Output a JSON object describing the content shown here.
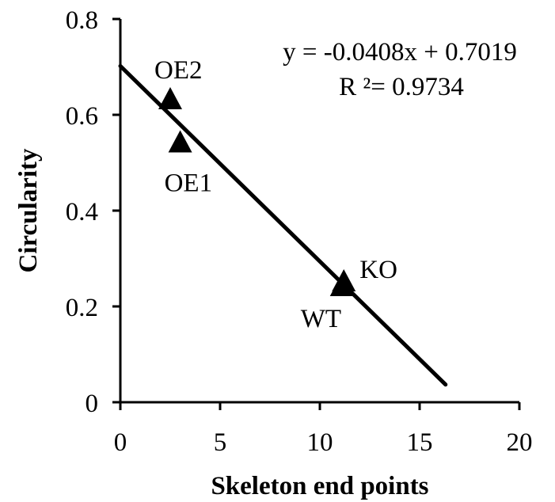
{
  "chart_data": {
    "type": "scatter",
    "xlabel": "Skeleton end points",
    "ylabel": "Circularity",
    "xlim": [
      0,
      20
    ],
    "ylim": [
      0,
      0.8
    ],
    "x_ticks": [
      "0",
      "5",
      "10",
      "15",
      "20"
    ],
    "y_ticks": [
      "0",
      "0.2",
      "0.4",
      "0.6",
      "0.8"
    ],
    "grid": false,
    "marker": "triangle",
    "marker_color": "#000000",
    "points": [
      {
        "label": "OE2",
        "x": 2.5,
        "y": 0.63
      },
      {
        "label": "OE1",
        "x": 3.0,
        "y": 0.54
      },
      {
        "label": "KO",
        "x": 11.2,
        "y": 0.25
      },
      {
        "label": "WT",
        "x": 11.1,
        "y": 0.24
      }
    ],
    "trendline": {
      "slope": -0.0408,
      "intercept": 0.7019,
      "x_range": [
        0,
        16.3
      ],
      "color": "#000000"
    },
    "equation_lines": [
      "y = -0.0408x + 0.7019",
      "R ²= 0.9734"
    ]
  }
}
